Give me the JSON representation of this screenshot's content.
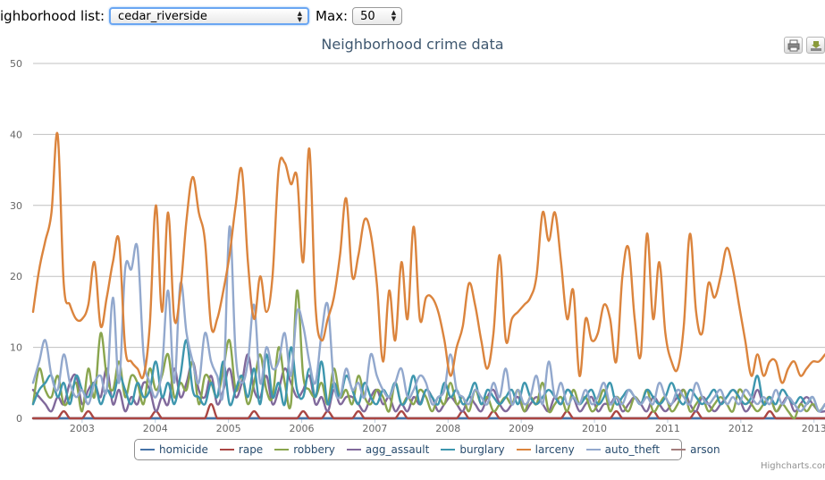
{
  "controls": {
    "neighborhood_label": "ighborhood list:",
    "neighborhood_value": "cedar_riverside",
    "max_label": "Max:",
    "max_value": "50"
  },
  "toolbar": {
    "print": "print-icon",
    "download": "download-icon"
  },
  "credits": "Highcharts.com",
  "chart_data": {
    "type": "line",
    "title": "Neighborhood crime data",
    "xlabel": "",
    "ylabel": "",
    "ylim": [
      0,
      50
    ],
    "yticks": [
      "0",
      "10",
      "20",
      "30",
      "40",
      "50"
    ],
    "xticks": [
      "2003",
      "2004",
      "2005",
      "2006",
      "2007",
      "2008",
      "2009",
      "2010",
      "2011",
      "2012",
      "2013"
    ],
    "x_range": [
      2002.33,
      2013.15
    ],
    "grid": true,
    "legend_position": "bottom-center",
    "series": [
      {
        "name": "homicide",
        "color": "#4572A7",
        "values": [
          0,
          0,
          0,
          0,
          0,
          0,
          0,
          0,
          0,
          0,
          0,
          0,
          0,
          0,
          0,
          0,
          0,
          0,
          0,
          0,
          0,
          0,
          0,
          0,
          0,
          0,
          0,
          0,
          0,
          0,
          0,
          0,
          0,
          0,
          0,
          0,
          0,
          0,
          0,
          0,
          0,
          0,
          0,
          0,
          0,
          0,
          0,
          0,
          0,
          0,
          0,
          0,
          0,
          0,
          0,
          0,
          0,
          0,
          0,
          0,
          0,
          0,
          0,
          0,
          0,
          0,
          0,
          0,
          0,
          0,
          0,
          0,
          0,
          0,
          0,
          0,
          0,
          0,
          0,
          0,
          0,
          0,
          0,
          0,
          0,
          0,
          0,
          0,
          0,
          0,
          0,
          0,
          0,
          0,
          0,
          0,
          0,
          0,
          0,
          0,
          0,
          0,
          0,
          0,
          0,
          0,
          0,
          0,
          0,
          0,
          0,
          0,
          0,
          0,
          0,
          0,
          0,
          0,
          0,
          0,
          0,
          0,
          0,
          0,
          0,
          0,
          0,
          0,
          0,
          0
        ]
      },
      {
        "name": "rape",
        "color": "#AA4643",
        "values": [
          0,
          0,
          0,
          0,
          0,
          1,
          0,
          0,
          0,
          1,
          0,
          0,
          0,
          0,
          0,
          0,
          0,
          0,
          0,
          0,
          1,
          0,
          0,
          0,
          0,
          0,
          0,
          0,
          0,
          2,
          0,
          0,
          0,
          0,
          0,
          0,
          1,
          0,
          0,
          0,
          0,
          0,
          0,
          0,
          1,
          0,
          0,
          0,
          1,
          0,
          0,
          0,
          0,
          1,
          0,
          0,
          0,
          0,
          0,
          0,
          1,
          0,
          0,
          0,
          0,
          0,
          0,
          0,
          0,
          0,
          1,
          0,
          0,
          0,
          0,
          1,
          0,
          0,
          0,
          0,
          0,
          0,
          0,
          0,
          0,
          0,
          0,
          1,
          0,
          0,
          0,
          0,
          0,
          0,
          0,
          1,
          0,
          0,
          0,
          0,
          0,
          1,
          0,
          0,
          0,
          0,
          0,
          0,
          1,
          0,
          0,
          0,
          0,
          0,
          0,
          0,
          0,
          0,
          0,
          0,
          1,
          0,
          0,
          0,
          0,
          0,
          0,
          0,
          0,
          0
        ]
      },
      {
        "name": "robbery",
        "color": "#89A54E",
        "values": [
          2,
          7,
          4,
          3,
          6,
          2,
          3,
          5,
          1,
          7,
          3,
          12,
          6,
          4,
          8,
          3,
          6,
          5,
          2,
          7,
          4,
          6,
          9,
          3,
          5,
          4,
          8,
          2,
          6,
          5,
          3,
          7,
          11,
          4,
          6,
          2,
          5,
          9,
          4,
          3,
          10,
          5,
          2,
          18,
          6,
          4,
          3,
          5,
          2,
          7,
          3,
          4,
          2,
          6,
          3,
          2,
          4,
          3,
          1,
          5,
          2,
          3,
          2,
          4,
          3,
          1,
          3,
          2,
          5,
          2,
          3,
          1,
          4,
          2,
          3,
          1,
          2,
          3,
          2,
          4,
          1,
          3,
          2,
          5,
          1,
          2,
          3,
          1,
          4,
          2,
          3,
          1,
          2,
          4,
          1,
          3,
          2,
          1,
          3,
          2,
          4,
          1,
          2,
          3,
          1,
          2,
          4,
          1,
          2,
          3,
          1,
          2,
          3,
          2,
          1,
          4,
          3,
          2,
          1,
          2,
          3,
          1,
          2,
          1,
          0,
          2,
          1,
          2,
          1,
          2
        ]
      },
      {
        "name": "agg_assault",
        "color": "#80699B",
        "values": [
          4,
          3,
          2,
          1,
          3,
          2,
          5,
          6,
          2,
          4,
          5,
          3,
          7,
          2,
          4,
          1,
          3,
          2,
          5,
          4,
          1,
          3,
          2,
          7,
          3,
          5,
          8,
          4,
          3,
          6,
          2,
          4,
          7,
          3,
          5,
          9,
          4,
          3,
          6,
          2,
          4,
          7,
          5,
          3,
          4,
          6,
          2,
          3,
          1,
          4,
          2,
          3,
          3,
          2,
          1,
          3,
          4,
          2,
          3,
          1,
          2,
          1,
          3,
          2,
          4,
          3,
          1,
          2,
          3,
          2,
          1,
          3,
          2,
          1,
          3,
          4,
          2,
          1,
          2,
          3,
          1,
          2,
          3,
          2,
          1,
          3,
          2,
          4,
          3,
          1,
          2,
          3,
          1,
          2,
          2,
          3,
          1,
          2,
          3,
          2,
          1,
          3,
          2,
          1,
          2,
          3,
          4,
          2,
          1,
          3,
          2,
          1,
          2,
          3,
          4,
          3,
          1,
          2,
          4,
          2,
          3,
          1,
          2,
          3,
          1,
          2,
          3,
          2,
          1,
          1
        ]
      },
      {
        "name": "burglary",
        "color": "#3D96AE",
        "values": [
          2,
          4,
          5,
          6,
          3,
          5,
          2,
          6,
          4,
          3,
          5,
          2,
          4,
          3,
          6,
          4,
          2,
          5,
          3,
          4,
          8,
          3,
          5,
          2,
          6,
          11,
          4,
          3,
          2,
          5,
          3,
          8,
          2,
          4,
          6,
          3,
          7,
          2,
          9,
          3,
          5,
          2,
          10,
          4,
          3,
          7,
          3,
          8,
          2,
          5,
          3,
          6,
          4,
          2,
          5,
          3,
          2,
          4,
          3,
          5,
          2,
          3,
          6,
          2,
          4,
          3,
          2,
          5,
          3,
          4,
          2,
          3,
          5,
          2,
          4,
          3,
          2,
          3,
          4,
          2,
          5,
          3,
          2,
          3,
          4,
          3,
          2,
          4,
          3,
          2,
          3,
          4,
          2,
          3,
          5,
          2,
          3,
          4,
          3,
          2,
          4,
          3,
          2,
          3,
          5,
          3,
          2,
          4,
          3,
          2,
          3,
          4,
          2,
          3,
          4,
          3,
          2,
          3,
          6,
          2,
          3,
          2,
          4,
          3,
          2,
          3,
          2,
          3,
          1,
          2
        ]
      },
      {
        "name": "larceny",
        "color": "#DB843D",
        "values": [
          15,
          21,
          25,
          29,
          40,
          19,
          16,
          14,
          14,
          16,
          22,
          13,
          17,
          22,
          25,
          10,
          8,
          7,
          6,
          13,
          30,
          15,
          29,
          14,
          18,
          28,
          34,
          29,
          25,
          13,
          14,
          18,
          23,
          30,
          35,
          22,
          14,
          20,
          15,
          20,
          35,
          36,
          33,
          34,
          22,
          38,
          16,
          11,
          14,
          17,
          23,
          31,
          20,
          23,
          28,
          26,
          19,
          8,
          18,
          11,
          22,
          14,
          27,
          14,
          17,
          17,
          15,
          11,
          6,
          10,
          13,
          19,
          16,
          11,
          7,
          12,
          23,
          11,
          14,
          15,
          16,
          17,
          20,
          29,
          25,
          29,
          22,
          14,
          18,
          6,
          14,
          11,
          12,
          16,
          14,
          8,
          20,
          24,
          14,
          9,
          26,
          14,
          22,
          12,
          8,
          7,
          13,
          26,
          15,
          12,
          19,
          17,
          20,
          24,
          21,
          16,
          11,
          6,
          9,
          6,
          8,
          8,
          5,
          7,
          8,
          6,
          7,
          8,
          8,
          9
        ]
      },
      {
        "name": "auto_theft",
        "color": "#92A8CD",
        "values": [
          5,
          8,
          11,
          6,
          4,
          9,
          5,
          3,
          4,
          2,
          5,
          6,
          4,
          17,
          5,
          21,
          21,
          24,
          9,
          5,
          3,
          7,
          18,
          5,
          19,
          12,
          8,
          5,
          12,
          8,
          6,
          4,
          27,
          9,
          5,
          8,
          16,
          5,
          10,
          7,
          8,
          12,
          6,
          15,
          13,
          8,
          5,
          12,
          16,
          5,
          3,
          7,
          4,
          5,
          3,
          9,
          6,
          4,
          3,
          5,
          7,
          3,
          4,
          6,
          5,
          2,
          3,
          4,
          9,
          4,
          3,
          2,
          4,
          3,
          2,
          5,
          3,
          7,
          2,
          4,
          2,
          3,
          6,
          2,
          8,
          3,
          5,
          2,
          3,
          2,
          4,
          2,
          3,
          5,
          2,
          3,
          2,
          4,
          3,
          2,
          3,
          2,
          5,
          3,
          2,
          4,
          3,
          2,
          5,
          3,
          2,
          3,
          4,
          2,
          3,
          2,
          4,
          3,
          2,
          3,
          2,
          4,
          2,
          3,
          2,
          1,
          2,
          3,
          1,
          2
        ]
      },
      {
        "name": "arson",
        "color": "#A47D7C",
        "values": [
          0,
          0,
          0,
          0,
          0,
          0,
          0,
          0,
          0,
          0,
          0,
          0,
          0,
          0,
          0,
          0,
          0,
          0,
          0,
          0,
          0,
          0,
          0,
          0,
          0,
          0,
          0,
          0,
          0,
          0,
          0,
          0,
          0,
          0,
          0,
          0,
          0,
          0,
          0,
          0,
          0,
          0,
          0,
          0,
          0,
          0,
          0,
          0,
          0,
          0,
          0,
          0,
          0,
          0,
          0,
          0,
          0,
          0,
          0,
          0,
          0,
          0,
          0,
          0,
          0,
          0,
          0,
          0,
          0,
          0,
          0,
          0,
          0,
          0,
          0,
          0,
          0,
          0,
          0,
          0,
          0,
          0,
          0,
          0,
          0,
          0,
          0,
          0,
          0,
          0,
          0,
          0,
          0,
          0,
          0,
          0,
          0,
          0,
          0,
          0,
          0,
          0,
          0,
          0,
          0,
          0,
          0,
          0,
          0,
          0,
          0,
          0,
          0,
          0,
          0,
          0,
          0,
          0,
          0,
          0,
          0,
          0,
          0,
          0,
          0,
          0,
          0,
          0,
          0,
          0
        ]
      }
    ]
  }
}
